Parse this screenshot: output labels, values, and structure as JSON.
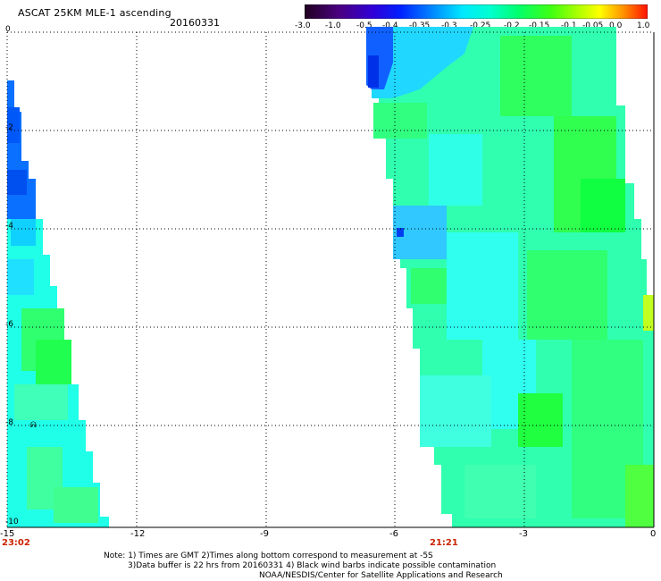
{
  "title": "ASCAT 25KM MLE-1 ascending",
  "date": "20160331",
  "colorbar": {
    "labels": [
      "-3.0",
      "-1.0",
      "-0.5",
      "-0.4",
      "-0.35",
      "-0.3",
      "-0.25",
      "-0.2",
      "-0.15",
      "-0.1",
      "-0.05",
      "0.0",
      "1.0"
    ],
    "colors": [
      "#2a0030",
      "#5b0090",
      "#3a00d0",
      "#0010ff",
      "#0070ff",
      "#00c0ff",
      "#00ffff",
      "#00ffb0",
      "#00ff40",
      "#40ff00",
      "#ffff00",
      "#ff9000",
      "#ff2000"
    ]
  },
  "axes": {
    "x_ticks": [
      "-15",
      "-12",
      "-9",
      "-6",
      "-3",
      "0"
    ],
    "y_ticks": [
      "0",
      "-2",
      "-4",
      "-6",
      "-8",
      "-10"
    ]
  },
  "time_labels": [
    "23:02",
    "21:21"
  ],
  "notes": {
    "line1": "Note: 1) Times are GMT 2)Times along bottom correspond to measurement at -5S",
    "line2": "3)Data buffer is 22 hrs from 20160331 4) Black wind barbs indicate possible contamination",
    "line3": "NOAA/NESDIS/Center for Satellite Applications and Research"
  },
  "colors": {
    "swath_base": "#20ffe0",
    "deep_blue": "#0050ff",
    "green": "#30ff40",
    "time_label": "#cc2200"
  }
}
